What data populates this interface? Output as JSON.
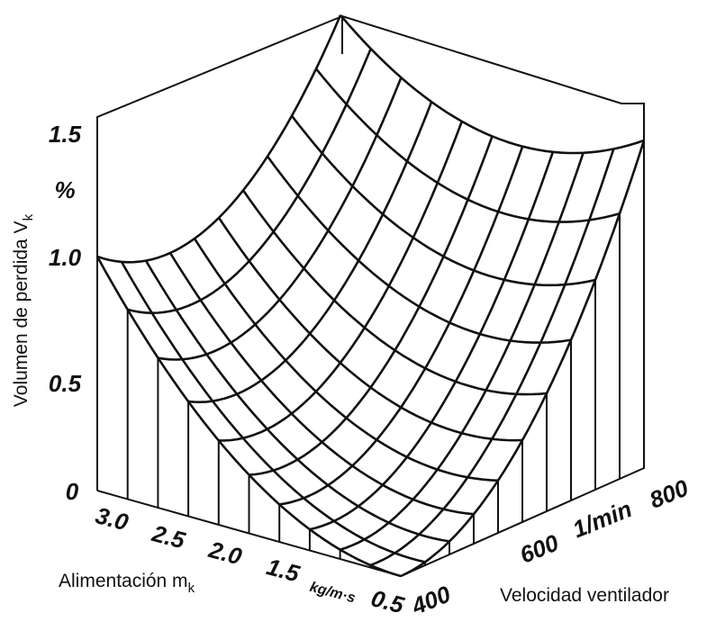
{
  "z_axis": {
    "label": "Volumen de perdida V",
    "label_sub": "k",
    "unit": "%",
    "ticks": [
      "0",
      "0.5",
      "1.0",
      "1.5"
    ]
  },
  "feed_axis": {
    "label": "Alimentación m",
    "label_sub": "k",
    "unit": "kg/m·s",
    "ticks": [
      "3.0",
      "2.5",
      "2.0",
      "1.5",
      "0.5"
    ]
  },
  "speed_axis": {
    "label": "Velocidad ventilador",
    "unit": "1/min",
    "ticks": [
      "400",
      "600",
      "800"
    ]
  }
}
